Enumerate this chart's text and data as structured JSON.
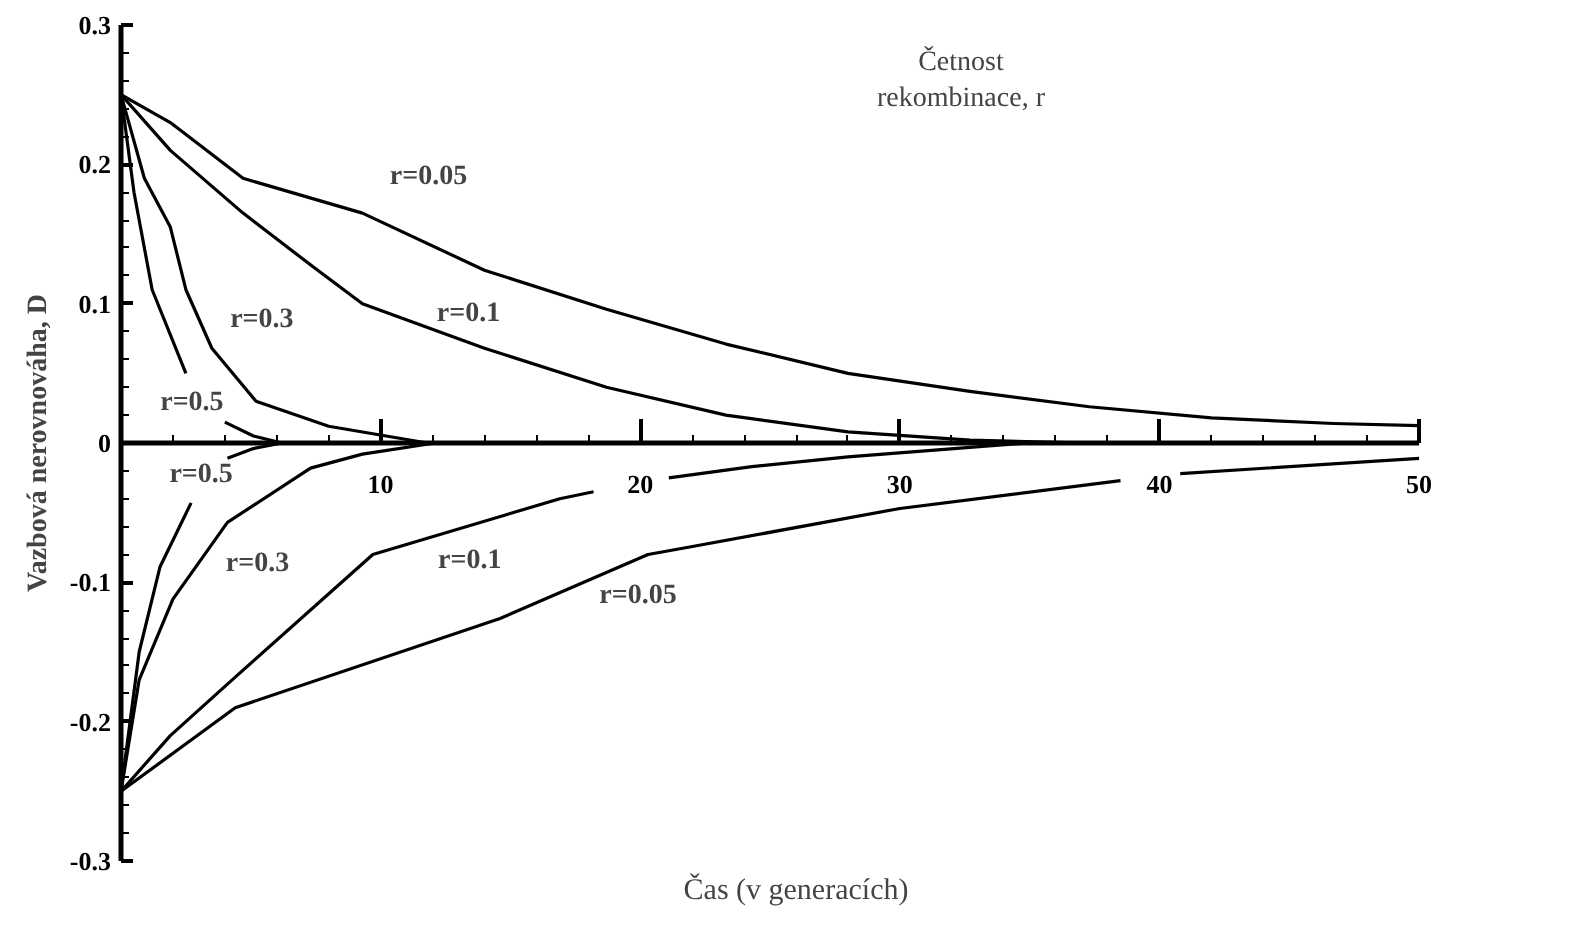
{
  "chart_data": {
    "type": "line",
    "xlabel": "Čas (v generacích)",
    "ylabel": "Vazbová nerovnováha, D",
    "xlim": [
      0,
      50
    ],
    "ylim": [
      -0.3,
      0.3
    ],
    "xticks": [
      {
        "value": 0,
        "label": null
      },
      10,
      20,
      30,
      40,
      50
    ],
    "yticks": [
      -0.3,
      -0.2,
      -0.1,
      0,
      0.1,
      0.2,
      0.3
    ],
    "grid": false,
    "marker": "none",
    "line_style": "solid",
    "series": [
      {
        "name": "r=0.05",
        "color": "#000000",
        "x": [
          0,
          1.9,
          4.7,
          9.3,
          14,
          18.7,
          23.3,
          28,
          32.7,
          37.3,
          42,
          46.7,
          50
        ],
        "values": [
          0.25,
          0.23,
          0.19,
          0.165,
          0.124,
          0.096,
          0.071,
          0.05,
          0.037,
          0.026,
          0.018,
          0.014,
          0.0125
        ]
      },
      {
        "name": "r=0.1",
        "color": "#000000",
        "x": [
          0,
          1.9,
          4.7,
          7.5,
          9.3,
          14,
          18.7,
          23.3,
          28,
          32.7,
          37.3,
          50
        ],
        "values": [
          0.25,
          0.21,
          0.165,
          0.125,
          0.1,
          0.068,
          0.04,
          0.02,
          0.008,
          0.002,
          0,
          0
        ]
      },
      {
        "name": "r=0.3",
        "color": "#000000",
        "x": [
          0,
          0.9,
          1.9,
          2.5,
          3.5,
          5.2,
          8,
          11.8,
          14
        ],
        "values": [
          0.25,
          0.19,
          0.155,
          0.11,
          0.068,
          0.03,
          0.012,
          0,
          0
        ]
      },
      {
        "name": "r=0.5",
        "color": "#000000",
        "x": [
          0,
          0.5,
          1.2,
          2.5,
          3.3,
          4,
          5.1,
          6.2
        ],
        "values": [
          0.25,
          0.18,
          0.11,
          0.05,
          null,
          0.015,
          0.005,
          0
        ]
      },
      {
        "name": "r=0.5",
        "color": "#000000",
        "x": [
          0,
          0.7,
          1.5,
          2.7,
          3.4,
          4.1,
          5.1,
          6.2
        ],
        "values": [
          -0.25,
          -0.15,
          -0.089,
          -0.043,
          null,
          -0.011,
          -0.004,
          0
        ]
      },
      {
        "name": "r=0.3",
        "color": "#000000",
        "x": [
          0,
          0.7,
          2,
          4.1,
          7.3,
          9.3,
          12.1,
          14
        ],
        "values": [
          -0.25,
          -0.17,
          -0.112,
          -0.057,
          -0.018,
          -0.008,
          0,
          0
        ]
      },
      {
        "name": "r=0.1",
        "color": "#000000",
        "x": [
          0,
          1.9,
          4.4,
          9.7,
          16.9,
          18.2,
          19.1,
          21.1,
          24.3,
          28,
          34.9,
          50
        ],
        "values": [
          -0.25,
          -0.21,
          -0.168,
          -0.08,
          -0.04,
          -0.035,
          null,
          -0.025,
          -0.017,
          -0.01,
          0,
          0
        ]
      },
      {
        "name": "r=0.05",
        "color": "#000000",
        "x": [
          0,
          4.4,
          14.6,
          20.3,
          21.8,
          30,
          38.5,
          39.6,
          40.8,
          50
        ],
        "values": [
          -0.25,
          -0.19,
          -0.126,
          -0.08,
          -0.075,
          -0.047,
          -0.027,
          null,
          -0.022,
          -0.011
        ]
      }
    ],
    "annotations": [
      "Četnost\nrekombinace, r"
    ]
  }
}
